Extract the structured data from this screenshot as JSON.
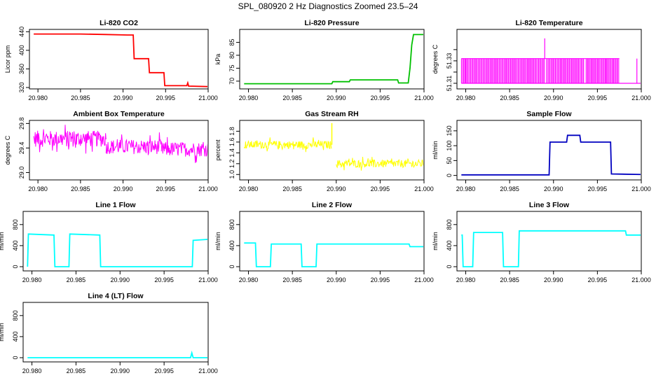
{
  "figure_title": "SPL_080920  2 Hz Diagnostics Zoomed 23.5–24",
  "chart_data": [
    {
      "type": "line",
      "title": "Li-820 CO2",
      "ylabel": "Licor ppm",
      "color": "#ff0000",
      "xlim": [
        20.979,
        21.0
      ],
      "ylim": [
        317,
        445
      ],
      "xticks": [
        "20.980",
        "20.985",
        "20.990",
        "20.995",
        "21.000"
      ],
      "yticks": [
        320,
        360,
        400,
        440
      ],
      "series": [
        {
          "x": [
            20.9795,
            20.985,
            20.988,
            20.9905,
            20.9912,
            20.9913,
            20.993,
            20.9931,
            20.9948,
            20.9949,
            20.9975,
            20.9976,
            20.9977,
            21.0
          ],
          "y": [
            435,
            435,
            434,
            433,
            433,
            382,
            382,
            352,
            352,
            324,
            324,
            330,
            323,
            322
          ]
        }
      ]
    },
    {
      "type": "line",
      "title": "Li-820 Pressure",
      "ylabel": "kPa",
      "color": "#00c000",
      "xlim": [
        20.979,
        21.0
      ],
      "ylim": [
        67,
        90
      ],
      "xticks": [
        "20.980",
        "20.985",
        "20.990",
        "20.995",
        "21.000"
      ],
      "yticks": [
        70,
        75,
        80,
        85
      ],
      "series": [
        {
          "x": [
            20.9795,
            20.9895,
            20.9896,
            20.9915,
            20.9916,
            20.997,
            20.9971,
            20.9982,
            20.9984,
            20.9986,
            20.9988,
            21.0
          ],
          "y": [
            69,
            69,
            69.8,
            69.8,
            70.5,
            70.5,
            69.3,
            69.3,
            75,
            84,
            88,
            88
          ]
        }
      ]
    },
    {
      "type": "bar",
      "title": "Li-820 Temperature",
      "ylabel": "degrees C",
      "color": "#ff00ff",
      "xlim": [
        20.979,
        21.0
      ],
      "ylim": [
        51.305,
        51.358
      ],
      "xticks": [
        "20.980",
        "20.985",
        "20.990",
        "20.995",
        "21.000"
      ],
      "yticks": [
        51.31,
        51.32,
        51.33,
        51.34
      ],
      "ytick_labels": [
        "51.31",
        "",
        "51.33",
        ""
      ],
      "base": 51.31,
      "level": 51.332,
      "spike": 51.35,
      "spike_x": 20.989,
      "segments": [
        [
          20.9795,
          20.989
        ],
        [
          20.9892,
          20.9935
        ],
        [
          20.9937,
          20.9975
        ]
      ],
      "lines_x": [
        20.98,
        20.996,
        20.9995
      ]
    },
    {
      "type": "line",
      "title": "Ambient Box Temperature",
      "ylabel": "degrees C",
      "color": "#ff00ff",
      "xlim": [
        20.979,
        21.0
      ],
      "ylim": [
        28.88,
        29.85
      ],
      "xticks": [
        "20.980",
        "20.985",
        "20.990",
        "20.995",
        "21.000"
      ],
      "yticks": [
        29.0,
        29.4,
        29.8
      ],
      "ytick_labels": [
        "29.0",
        "29.4",
        "29.8"
      ],
      "noise_bands": [
        {
          "x0": 20.9795,
          "x1": 20.988,
          "mid": 29.55,
          "amp": 0.22
        },
        {
          "x0": 20.988,
          "x1": 20.9945,
          "mid": 29.42,
          "amp": 0.2
        },
        {
          "x0": 20.9945,
          "x1": 21.0,
          "mid": 29.38,
          "amp": 0.2
        }
      ]
    },
    {
      "type": "line",
      "title": "Gas Stream RH",
      "ylabel": "percent",
      "color": "#ffff00",
      "xlim": [
        20.979,
        21.0
      ],
      "ylim": [
        0.9,
        2.0
      ],
      "xticks": [
        "20.980",
        "20.985",
        "20.990",
        "20.995",
        "21.000"
      ],
      "yticks": [
        1.0,
        1.2,
        1.4,
        1.6,
        1.8
      ],
      "ytick_labels": [
        "1.0",
        "1.2",
        "1.4",
        "1.6",
        "1.8"
      ],
      "noise_bands": [
        {
          "x0": 20.9795,
          "x1": 20.9895,
          "mid": 1.55,
          "amp": 0.12
        },
        {
          "x0": 20.99,
          "x1": 21.0,
          "mid": 1.2,
          "amp": 0.12
        }
      ],
      "spike_x": 20.9895,
      "spike_y": 1.95
    },
    {
      "type": "line",
      "title": "Sample Flow",
      "ylabel": "ml/min",
      "color": "#0000c0",
      "xlim": [
        20.979,
        21.0
      ],
      "ylim": [
        -15,
        185
      ],
      "xticks": [
        "20.980",
        "20.985",
        "20.990",
        "20.995",
        "21.000"
      ],
      "yticks": [
        0,
        50,
        100,
        150
      ],
      "series": [
        {
          "x": [
            20.9795,
            20.9895,
            20.9896,
            20.9915,
            20.9916,
            20.993,
            20.9931,
            20.9965,
            20.9966,
            21.0
          ],
          "y": [
            2,
            2,
            112,
            112,
            135,
            135,
            112,
            112,
            5,
            3
          ]
        }
      ]
    },
    {
      "type": "line",
      "title": "Line 1 Flow",
      "ylabel": "ml/min",
      "color": "#00ffff",
      "xlim": [
        20.979,
        21.0
      ],
      "ylim": [
        -80,
        1050
      ],
      "xticks": [
        "20.980",
        "20.985",
        "20.990",
        "20.995",
        "21.000"
      ],
      "yticks": [
        0,
        400,
        800
      ],
      "series": [
        {
          "x": [
            20.9795,
            20.9796,
            20.9825,
            20.9826,
            20.9842,
            20.9843,
            20.9877,
            20.9878,
            20.9982,
            20.9983,
            21.0
          ],
          "y": [
            0,
            620,
            600,
            0,
            0,
            620,
            600,
            0,
            0,
            500,
            520
          ]
        }
      ]
    },
    {
      "type": "line",
      "title": "Line 2 Flow",
      "ylabel": "ml/min",
      "color": "#00ffff",
      "xlim": [
        20.979,
        21.0
      ],
      "ylim": [
        -80,
        1050
      ],
      "xticks": [
        "20.980",
        "20.985",
        "20.990",
        "20.995",
        "21.000"
      ],
      "yticks": [
        0,
        400,
        800
      ],
      "series": [
        {
          "x": [
            20.9795,
            20.9808,
            20.9809,
            20.9825,
            20.9826,
            20.986,
            20.9861,
            20.9877,
            20.9878,
            20.9983,
            20.9984,
            21.0
          ],
          "y": [
            450,
            450,
            0,
            0,
            430,
            430,
            0,
            0,
            430,
            430,
            380,
            380
          ]
        }
      ]
    },
    {
      "type": "line",
      "title": "Line 3 Flow",
      "ylabel": "ml/min",
      "color": "#00ffff",
      "xlim": [
        20.979,
        21.0
      ],
      "ylim": [
        -80,
        1050
      ],
      "xticks": [
        "20.980",
        "20.985",
        "20.990",
        "20.995",
        "21.000"
      ],
      "yticks": [
        0,
        400,
        800
      ],
      "series": [
        {
          "x": [
            20.9795,
            20.9796,
            20.9797,
            20.9808,
            20.9809,
            20.9842,
            20.9843,
            20.986,
            20.9861,
            20.9982,
            20.9983,
            21.0
          ],
          "y": [
            600,
            600,
            0,
            0,
            650,
            650,
            0,
            0,
            680,
            680,
            600,
            600
          ]
        }
      ]
    },
    {
      "type": "line",
      "title": "Line 4 (LT) Flow",
      "ylabel": "ml/min",
      "color": "#00ffff",
      "xlim": [
        20.979,
        21.0
      ],
      "ylim": [
        -80,
        1050
      ],
      "xticks": [
        "20.980",
        "20.985",
        "20.990",
        "20.995",
        "21.000"
      ],
      "yticks": [
        0,
        400,
        800
      ],
      "series": [
        {
          "x": [
            20.9795,
            20.998,
            20.99815,
            20.9983,
            21.0
          ],
          "y": [
            0,
            0,
            90,
            0,
            0
          ]
        }
      ]
    }
  ]
}
